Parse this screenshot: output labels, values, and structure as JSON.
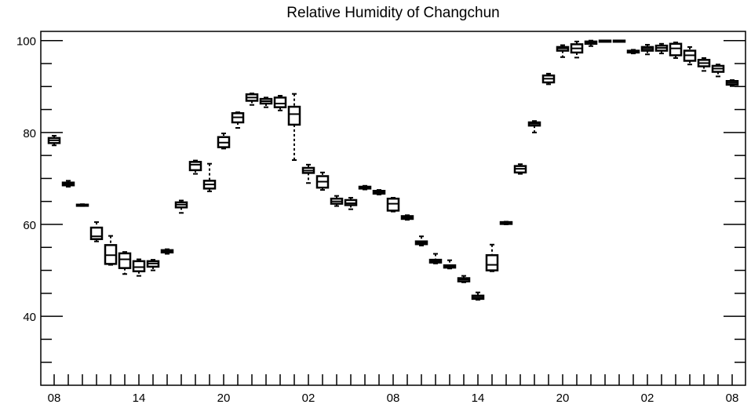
{
  "chart_data": {
    "type": "box",
    "title": "Relative Humidity of Changchun",
    "xlabel": "",
    "ylabel": "",
    "ylim": [
      25,
      102
    ],
    "y_ticks": [
      40,
      60,
      80,
      100
    ],
    "x_tick_labels": [
      "08",
      "14",
      "20",
      "02",
      "08",
      "14",
      "20",
      "02",
      "08"
    ],
    "x_tick_hours": [
      0,
      6,
      12,
      18,
      24,
      30,
      36,
      42,
      48
    ],
    "series": [
      {
        "hour": 0,
        "min": 77.2,
        "q1": 77.7,
        "median": 78.3,
        "q3": 78.8,
        "max": 79.3
      },
      {
        "hour": 1,
        "min": 68.2,
        "q1": 68.5,
        "median": 68.8,
        "q3": 69.1,
        "max": 69.5
      },
      {
        "hour": 2,
        "min": 64.0,
        "q1": 64.1,
        "median": 64.2,
        "q3": 64.3,
        "max": 64.4
      },
      {
        "hour": 3,
        "min": 56.3,
        "q1": 56.8,
        "median": 57.4,
        "q3": 59.3,
        "max": 60.5
      },
      {
        "hour": 4,
        "min": 51.2,
        "q1": 51.4,
        "median": 53.3,
        "q3": 55.5,
        "max": 57.5
      },
      {
        "hour": 5,
        "min": 49.2,
        "q1": 50.5,
        "median": 52.4,
        "q3": 53.7,
        "max": 54.0
      },
      {
        "hour": 6,
        "min": 48.8,
        "q1": 49.8,
        "median": 50.7,
        "q3": 52.0,
        "max": 52.4
      },
      {
        "hour": 7,
        "min": 50.0,
        "q1": 50.8,
        "median": 51.5,
        "q3": 52.0,
        "max": 52.3
      },
      {
        "hour": 8,
        "min": 53.6,
        "q1": 53.9,
        "median": 54.2,
        "q3": 54.4,
        "max": 54.6
      },
      {
        "hour": 9,
        "min": 62.5,
        "q1": 63.7,
        "median": 64.3,
        "q3": 64.8,
        "max": 65.2
      },
      {
        "hour": 10,
        "min": 71.0,
        "q1": 71.8,
        "median": 73.0,
        "q3": 73.6,
        "max": 73.9
      },
      {
        "hour": 11,
        "min": 67.2,
        "q1": 67.8,
        "median": 68.7,
        "q3": 69.5,
        "max": 73.2
      },
      {
        "hour": 12,
        "min": 76.5,
        "q1": 76.8,
        "median": 77.8,
        "q3": 79.0,
        "max": 79.8
      },
      {
        "hour": 13,
        "min": 81.0,
        "q1": 82.2,
        "median": 83.3,
        "q3": 84.2,
        "max": 84.4
      },
      {
        "hour": 14,
        "min": 86.0,
        "q1": 86.9,
        "median": 87.6,
        "q3": 88.3,
        "max": 88.5
      },
      {
        "hour": 15,
        "min": 85.5,
        "q1": 86.3,
        "median": 86.8,
        "q3": 87.3,
        "max": 87.6
      },
      {
        "hour": 16,
        "min": 84.8,
        "q1": 85.5,
        "median": 86.3,
        "q3": 87.6,
        "max": 88.0
      },
      {
        "hour": 17,
        "min": 74.0,
        "q1": 81.7,
        "median": 84.0,
        "q3": 85.6,
        "max": 88.4
      },
      {
        "hour": 18,
        "min": 69.0,
        "q1": 71.2,
        "median": 71.7,
        "q3": 72.3,
        "max": 73.0
      },
      {
        "hour": 19,
        "min": 67.5,
        "q1": 68.0,
        "median": 69.3,
        "q3": 70.5,
        "max": 71.3
      },
      {
        "hour": 20,
        "min": 64.0,
        "q1": 64.5,
        "median": 65.0,
        "q3": 65.6,
        "max": 66.2
      },
      {
        "hour": 21,
        "min": 63.3,
        "q1": 64.2,
        "median": 64.6,
        "q3": 65.3,
        "max": 65.8
      },
      {
        "hour": 22,
        "min": 67.6,
        "q1": 67.8,
        "median": 68.0,
        "q3": 68.2,
        "max": 68.4
      },
      {
        "hour": 23,
        "min": 66.5,
        "q1": 66.7,
        "median": 67.0,
        "q3": 67.3,
        "max": 67.5
      },
      {
        "hour": 24,
        "min": 62.8,
        "q1": 63.0,
        "median": 64.5,
        "q3": 65.6,
        "max": 65.8
      },
      {
        "hour": 25,
        "min": 61.0,
        "q1": 61.2,
        "median": 61.5,
        "q3": 61.8,
        "max": 62.0
      },
      {
        "hour": 26,
        "min": 55.4,
        "q1": 55.7,
        "median": 56.0,
        "q3": 56.3,
        "max": 57.4
      },
      {
        "hour": 27,
        "min": 51.5,
        "q1": 51.7,
        "median": 52.0,
        "q3": 52.3,
        "max": 53.6
      },
      {
        "hour": 28,
        "min": 50.4,
        "q1": 50.6,
        "median": 50.9,
        "q3": 51.1,
        "max": 52.2
      },
      {
        "hour": 29,
        "min": 47.4,
        "q1": 47.6,
        "median": 48.0,
        "q3": 48.3,
        "max": 48.8
      },
      {
        "hour": 30,
        "min": 43.6,
        "q1": 43.8,
        "median": 44.1,
        "q3": 44.5,
        "max": 45.2
      },
      {
        "hour": 31,
        "min": 49.8,
        "q1": 50.0,
        "median": 51.2,
        "q3": 53.3,
        "max": 55.6
      },
      {
        "hour": 32,
        "min": 60.0,
        "q1": 60.1,
        "median": 60.3,
        "q3": 60.5,
        "max": 60.6
      },
      {
        "hour": 33,
        "min": 71.0,
        "q1": 71.3,
        "median": 72.1,
        "q3": 72.7,
        "max": 73.1
      },
      {
        "hour": 34,
        "min": 80.0,
        "q1": 81.5,
        "median": 81.9,
        "q3": 82.2,
        "max": 82.5
      },
      {
        "hour": 35,
        "min": 90.5,
        "q1": 90.9,
        "median": 91.7,
        "q3": 92.4,
        "max": 92.8
      },
      {
        "hour": 36,
        "min": 96.4,
        "q1": 97.8,
        "median": 98.3,
        "q3": 98.6,
        "max": 99.0
      },
      {
        "hour": 37,
        "min": 96.3,
        "q1": 97.4,
        "median": 98.3,
        "q3": 99.2,
        "max": 99.8
      },
      {
        "hour": 38,
        "min": 98.8,
        "q1": 99.3,
        "median": 99.6,
        "q3": 99.8,
        "max": 100.0
      },
      {
        "hour": 39,
        "min": 99.8,
        "q1": 99.9,
        "median": 100.0,
        "q3": 100.0,
        "max": 100.0
      },
      {
        "hour": 40,
        "min": 99.9,
        "q1": 99.9,
        "median": 100.0,
        "q3": 100.0,
        "max": 100.0
      },
      {
        "hour": 41,
        "min": 97.2,
        "q1": 97.4,
        "median": 97.6,
        "q3": 97.8,
        "max": 98.0
      },
      {
        "hour": 42,
        "min": 97.0,
        "q1": 97.8,
        "median": 98.2,
        "q3": 98.6,
        "max": 99.1
      },
      {
        "hour": 43,
        "min": 97.2,
        "q1": 97.8,
        "median": 98.4,
        "q3": 98.9,
        "max": 99.3
      },
      {
        "hour": 44,
        "min": 96.2,
        "q1": 96.8,
        "median": 98.3,
        "q3": 99.3,
        "max": 99.6
      },
      {
        "hour": 45,
        "min": 94.8,
        "q1": 95.6,
        "median": 96.8,
        "q3": 97.8,
        "max": 98.6
      },
      {
        "hour": 46,
        "min": 93.4,
        "q1": 94.4,
        "median": 95.1,
        "q3": 95.8,
        "max": 96.2
      },
      {
        "hour": 47,
        "min": 92.2,
        "q1": 93.2,
        "median": 93.9,
        "q3": 94.5,
        "max": 94.8
      },
      {
        "hour": 48,
        "min": 90.1,
        "q1": 90.4,
        "median": 90.8,
        "q3": 91.2,
        "max": 91.4
      }
    ]
  }
}
